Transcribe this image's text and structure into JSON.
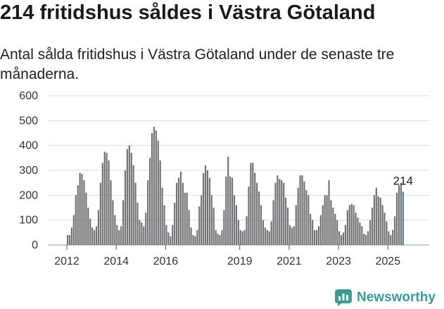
{
  "title": "214 fritidshus såldes i Västra Götaland",
  "subtitle": "Antal sålda fritidshus i Västra Götaland under de senaste tre månaderna.",
  "brand": {
    "name": "Newsworthy",
    "icon": "newsworthy-logo-icon"
  },
  "colors": {
    "bar": "#6e6e73",
    "highlight": "#2a8a85",
    "grid": "#dddddd",
    "brand": "#3c9b94"
  },
  "chart_data": {
    "type": "bar",
    "title": "",
    "xlabel": "",
    "ylabel": "",
    "ylim": [
      0,
      600
    ],
    "yticks": [
      "0",
      "100",
      "200",
      "300",
      "400",
      "500",
      "600"
    ],
    "xtick_labels": [
      {
        "label": "2012",
        "year": 2012
      },
      {
        "label": "2014",
        "year": 2014
      },
      {
        "label": "2016",
        "year": 2016
      },
      {
        "label": "2019",
        "year": 2019
      },
      {
        "label": "2021",
        "year": 2021
      },
      {
        "label": "2023",
        "year": 2023
      },
      {
        "label": "2025",
        "year": 2025
      }
    ],
    "grid": true,
    "start": "2012-01",
    "end": "2025-07",
    "highlight_last": true,
    "last_label": "214",
    "values": [
      40,
      40,
      70,
      120,
      200,
      240,
      290,
      285,
      260,
      210,
      150,
      105,
      70,
      60,
      75,
      140,
      250,
      330,
      375,
      370,
      340,
      260,
      180,
      120,
      80,
      60,
      75,
      180,
      300,
      385,
      400,
      370,
      320,
      250,
      170,
      100,
      90,
      75,
      130,
      260,
      350,
      450,
      475,
      460,
      420,
      340,
      230,
      160,
      80,
      50,
      35,
      80,
      170,
      250,
      270,
      295,
      250,
      210,
      210,
      140,
      70,
      40,
      35,
      60,
      155,
      200,
      290,
      320,
      300,
      270,
      200,
      150,
      60,
      45,
      40,
      60,
      140,
      275,
      355,
      275,
      270,
      200,
      160,
      100,
      60,
      55,
      60,
      115,
      235,
      330,
      330,
      290,
      250,
      215,
      160,
      100,
      70,
      60,
      55,
      95,
      180,
      250,
      280,
      265,
      260,
      250,
      190,
      150,
      80,
      70,
      75,
      160,
      230,
      280,
      280,
      255,
      220,
      200,
      125,
      100,
      60,
      60,
      75,
      120,
      160,
      200,
      200,
      260,
      180,
      150,
      125,
      100,
      55,
      40,
      50,
      80,
      140,
      160,
      165,
      160,
      130,
      110,
      90,
      75,
      45,
      40,
      55,
      100,
      150,
      200,
      230,
      195,
      190,
      160,
      130,
      95,
      55,
      40,
      60,
      115,
      210,
      240,
      250,
      214
    ]
  }
}
